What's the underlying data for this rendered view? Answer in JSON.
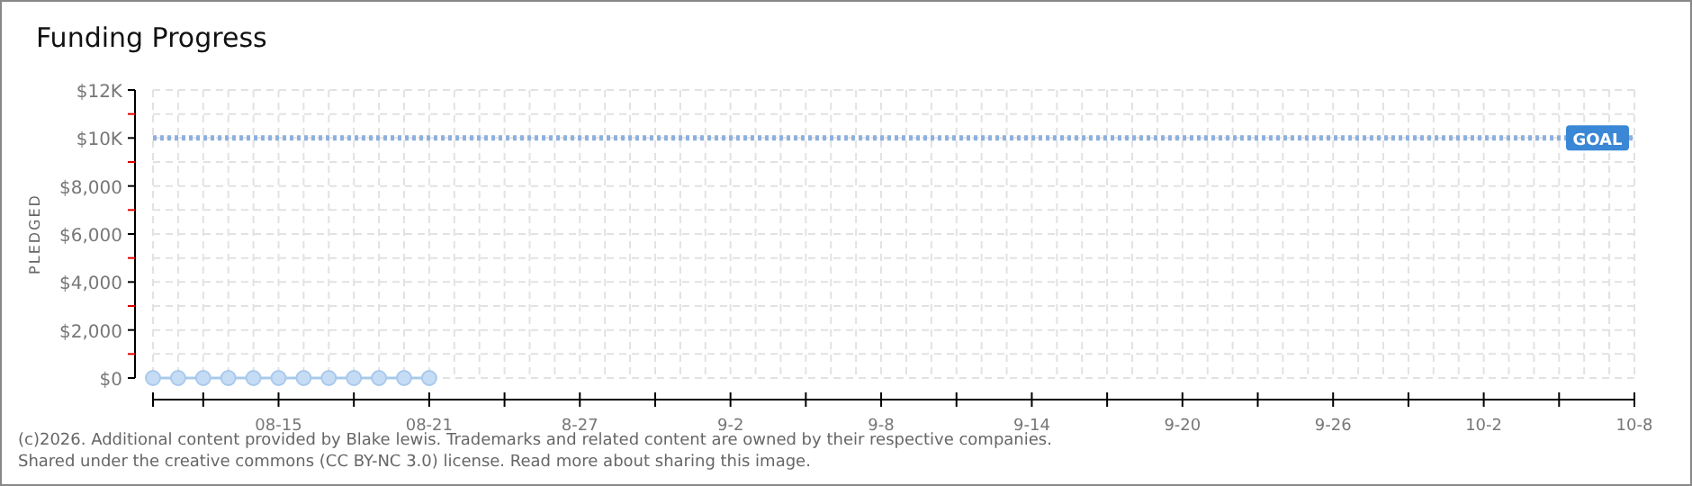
{
  "chart_data": {
    "type": "line",
    "title": "Funding Progress",
    "ylabel": "PLEDGED",
    "x": [
      "--08-10",
      "--08-11",
      "--08-12",
      "--08-13",
      "--08-14",
      "--08-15",
      "--08-16",
      "--08-17",
      "--08-18",
      "--08-19",
      "--08-20",
      "--08-21"
    ],
    "series": [
      {
        "color": "#a9c9ec",
        "values": [
          0,
          0,
          0,
          0,
          0,
          0,
          0,
          0,
          0,
          0,
          0,
          0
        ]
      }
    ],
    "marker": "circle",
    "line_style": "solid",
    "grid": true,
    "xlim": [
      "--08-10",
      "--10-08"
    ],
    "xticks": [
      {
        "value": "--08-10",
        "label": null
      },
      {
        "value": "--08-12",
        "label": null
      },
      {
        "value": "--08-15",
        "label": "08-15"
      },
      {
        "value": "--08-18",
        "label": null
      },
      {
        "value": "--08-21",
        "label": "08-21"
      },
      {
        "value": "--08-24",
        "label": null
      },
      {
        "value": "--08-27",
        "label": "8-27"
      },
      {
        "value": "--08-30",
        "label": null
      },
      {
        "value": "--09-02",
        "label": "9-2"
      },
      {
        "value": "--09-05",
        "label": null
      },
      {
        "value": "--09-08",
        "label": "9-8"
      },
      {
        "value": "--09-11",
        "label": null
      },
      {
        "value": "--09-14",
        "label": "9-14"
      },
      {
        "value": "--09-17",
        "label": null
      },
      {
        "value": "--09-20",
        "label": "9-20"
      },
      {
        "value": "--09-23",
        "label": null
      },
      {
        "value": "--09-26",
        "label": "9-26"
      },
      {
        "value": "--09-29",
        "label": null
      },
      {
        "value": "--10-02",
        "label": "10-2"
      },
      {
        "value": "--10-05",
        "label": null
      },
      {
        "value": "--10-08",
        "label": "10-8"
      }
    ],
    "ylim": [
      0,
      12000
    ],
    "yticks": [
      {
        "value": 0,
        "label": "$0"
      },
      {
        "value": 1000,
        "label": null
      },
      {
        "value": 2000,
        "label": "$2,000"
      },
      {
        "value": 3000,
        "label": null
      },
      {
        "value": 4000,
        "label": "$4,000"
      },
      {
        "value": 5000,
        "label": null
      },
      {
        "value": 6000,
        "label": "$6,000"
      },
      {
        "value": 7000,
        "label": null
      },
      {
        "value": 8000,
        "label": "$8,000"
      },
      {
        "value": 9000,
        "label": null
      },
      {
        "value": 10000,
        "label": "$10K"
      },
      {
        "value": 11000,
        "label": null
      },
      {
        "value": 12000,
        "label": "$12K"
      }
    ],
    "ref_lines": [
      {
        "axis": "y",
        "value": 10000,
        "label": "GOAL",
        "color": "#8fb0dd",
        "line_style": "dotted"
      }
    ],
    "annotations": [
      "(c)2026. Additional content provided by Blake lewis. Trademarks and related content are owned by their respective companies.",
      "Shared under the creative commons (CC BY-NC 3.0) license. Read more about sharing this image."
    ]
  }
}
